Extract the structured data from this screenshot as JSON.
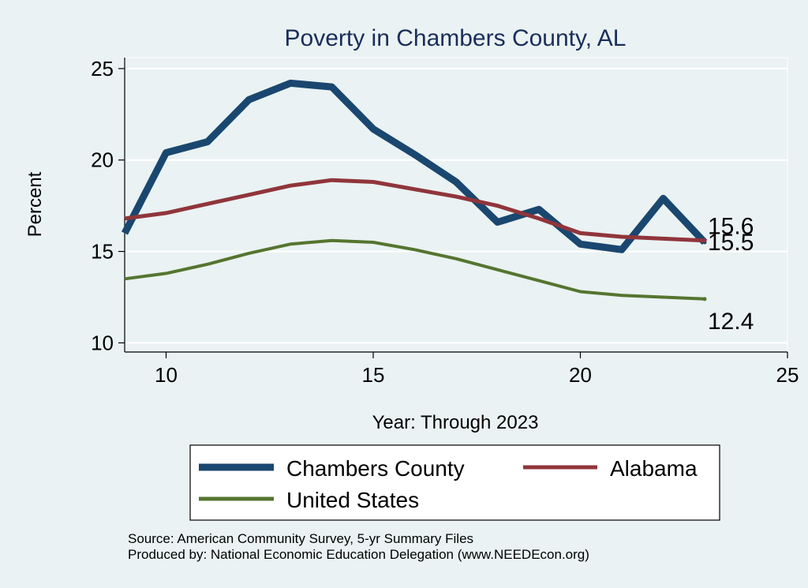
{
  "chart_data": {
    "type": "line",
    "title": "Poverty in Chambers County, AL",
    "xlabel": "Year: Through 2023",
    "ylabel": "Percent",
    "xlim": [
      9,
      25
    ],
    "ylim": [
      9.5,
      25.6
    ],
    "xticks": [
      10,
      15,
      20,
      25
    ],
    "yticks": [
      10,
      15,
      20,
      25
    ],
    "grid": "horizontal",
    "series": [
      {
        "name": "Chambers County",
        "color": "#1a476f",
        "x": [
          9,
          10,
          11,
          12,
          13,
          14,
          15,
          16,
          17,
          18,
          19,
          20,
          21,
          22,
          23
        ],
        "values": [
          16.0,
          20.4,
          21.0,
          23.3,
          24.2,
          24.0,
          21.7,
          20.3,
          18.8,
          16.6,
          17.3,
          15.4,
          15.1,
          17.9,
          15.5
        ],
        "end_label": "15.5"
      },
      {
        "name": "Alabama",
        "color": "#90353b",
        "x": [
          9,
          10,
          11,
          12,
          13,
          14,
          15,
          16,
          17,
          18,
          19,
          20,
          21,
          22,
          23
        ],
        "values": [
          16.8,
          17.1,
          17.6,
          18.1,
          18.6,
          18.9,
          18.8,
          18.4,
          18.0,
          17.5,
          16.8,
          16.0,
          15.8,
          15.7,
          15.6
        ],
        "end_label": "15.6"
      },
      {
        "name": "United States",
        "color": "#55752f",
        "x": [
          9,
          10,
          11,
          12,
          13,
          14,
          15,
          16,
          17,
          18,
          19,
          20,
          21,
          22,
          23
        ],
        "values": [
          13.5,
          13.8,
          14.3,
          14.9,
          15.4,
          15.6,
          15.5,
          15.1,
          14.6,
          14.0,
          13.4,
          12.8,
          12.6,
          12.5,
          12.4
        ],
        "end_label": "12.4"
      }
    ],
    "legend_position": "bottom",
    "source_lines": [
      "Source: American Community Survey, 5-yr Summary Files",
      "Produced by: National Economic Education Delegation (www.NEEDEcon.org)"
    ]
  }
}
